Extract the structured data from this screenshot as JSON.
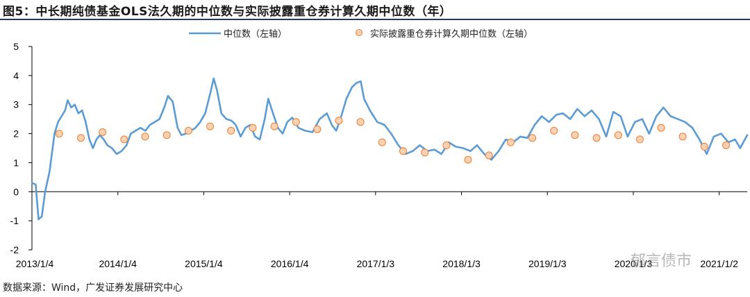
{
  "title": "图5：中长期纯债基金OLS法久期的中位数与实际披露重仓券计算久期中位数（年）",
  "source": "数据来源：Wind，广发证券发展研究中心",
  "watermark": "郁言债市",
  "colors": {
    "line": "#5b9bd5",
    "marker_fill": "#fbd3b4",
    "marker_edge": "#ed7d31",
    "axis": "#000000",
    "title_rule": "#1f3864"
  },
  "chart_data": {
    "type": "line",
    "title": "",
    "xlabel": "",
    "ylabel": "",
    "ylim": [
      -2,
      5
    ],
    "yticks": [
      -2,
      -1,
      0,
      1,
      2,
      3,
      4,
      5
    ],
    "x_range": [
      "2013-01-04",
      "2021-05-01"
    ],
    "xticks": [
      {
        "date": "2013-01-04",
        "label": "2013/1/4"
      },
      {
        "date": "2014-01-04",
        "label": "2014/1/4"
      },
      {
        "date": "2015-01-04",
        "label": "2015/1/4"
      },
      {
        "date": "2016-01-04",
        "label": "2016/1/4"
      },
      {
        "date": "2017-01-03",
        "label": "2017/1/3"
      },
      {
        "date": "2018-01-03",
        "label": "2018/1/3"
      },
      {
        "date": "2019-01-03",
        "label": "2019/1/3"
      },
      {
        "date": "2020-01-03",
        "label": "2020/1/3"
      },
      {
        "date": "2021-01-02",
        "label": "2021/1/2"
      }
    ],
    "legend_position": "top",
    "series": [
      {
        "name": "中位数（左轴）",
        "kind": "line",
        "points": [
          [
            "2013-01-04",
            0.3
          ],
          [
            "2013-01-20",
            0.25
          ],
          [
            "2013-02-01",
            -0.95
          ],
          [
            "2013-02-15",
            -0.85
          ],
          [
            "2013-03-01",
            0.0
          ],
          [
            "2013-03-20",
            0.7
          ],
          [
            "2013-04-10",
            2.0
          ],
          [
            "2013-04-25",
            2.4
          ],
          [
            "2013-05-10",
            2.6
          ],
          [
            "2013-05-25",
            2.8
          ],
          [
            "2013-06-05",
            3.15
          ],
          [
            "2013-06-20",
            2.9
          ],
          [
            "2013-07-05",
            3.0
          ],
          [
            "2013-07-20",
            2.7
          ],
          [
            "2013-08-05",
            2.8
          ],
          [
            "2013-08-20",
            2.4
          ],
          [
            "2013-09-05",
            1.8
          ],
          [
            "2013-09-20",
            1.5
          ],
          [
            "2013-10-05",
            1.8
          ],
          [
            "2013-10-20",
            1.95
          ],
          [
            "2013-11-05",
            1.8
          ],
          [
            "2013-11-20",
            1.6
          ],
          [
            "2013-12-10",
            1.5
          ],
          [
            "2013-12-30",
            1.3
          ],
          [
            "2014-01-20",
            1.4
          ],
          [
            "2014-02-10",
            1.6
          ],
          [
            "2014-02-28",
            2.0
          ],
          [
            "2014-03-20",
            2.1
          ],
          [
            "2014-04-10",
            2.2
          ],
          [
            "2014-05-01",
            2.1
          ],
          [
            "2014-05-20",
            2.3
          ],
          [
            "2014-06-10",
            2.4
          ],
          [
            "2014-06-30",
            2.5
          ],
          [
            "2014-07-20",
            2.9
          ],
          [
            "2014-08-05",
            3.3
          ],
          [
            "2014-08-25",
            3.1
          ],
          [
            "2014-09-15",
            2.2
          ],
          [
            "2014-10-01",
            1.95
          ],
          [
            "2014-10-20",
            2.0
          ],
          [
            "2014-11-10",
            2.1
          ],
          [
            "2014-11-30",
            2.2
          ],
          [
            "2014-12-20",
            2.4
          ],
          [
            "2015-01-10",
            2.7
          ],
          [
            "2015-02-01",
            3.4
          ],
          [
            "2015-02-15",
            3.9
          ],
          [
            "2015-03-01",
            3.5
          ],
          [
            "2015-03-20",
            2.7
          ],
          [
            "2015-04-10",
            2.5
          ],
          [
            "2015-05-01",
            2.45
          ],
          [
            "2015-05-20",
            2.3
          ],
          [
            "2015-06-10",
            1.9
          ],
          [
            "2015-06-30",
            2.2
          ],
          [
            "2015-07-20",
            2.3
          ],
          [
            "2015-08-10",
            1.9
          ],
          [
            "2015-08-30",
            1.8
          ],
          [
            "2015-09-20",
            2.5
          ],
          [
            "2015-10-05",
            3.2
          ],
          [
            "2015-10-25",
            2.7
          ],
          [
            "2015-11-15",
            2.2
          ],
          [
            "2015-12-05",
            2.0
          ],
          [
            "2015-12-25",
            2.4
          ],
          [
            "2016-01-15",
            2.55
          ],
          [
            "2016-02-10",
            2.2
          ],
          [
            "2016-03-10",
            2.1
          ],
          [
            "2016-04-10",
            2.05
          ],
          [
            "2016-05-10",
            2.5
          ],
          [
            "2016-06-10",
            2.7
          ],
          [
            "2016-07-01",
            2.3
          ],
          [
            "2016-07-20",
            2.1
          ],
          [
            "2016-08-10",
            2.6
          ],
          [
            "2016-09-01",
            3.2
          ],
          [
            "2016-09-25",
            3.6
          ],
          [
            "2016-10-15",
            3.75
          ],
          [
            "2016-11-01",
            3.8
          ],
          [
            "2016-11-15",
            3.2
          ],
          [
            "2016-12-10",
            2.8
          ],
          [
            "2017-01-10",
            2.4
          ],
          [
            "2017-02-10",
            2.3
          ],
          [
            "2017-03-10",
            2.0
          ],
          [
            "2017-04-10",
            1.6
          ],
          [
            "2017-05-10",
            1.3
          ],
          [
            "2017-06-10",
            1.4
          ],
          [
            "2017-07-10",
            1.6
          ],
          [
            "2017-08-10",
            1.4
          ],
          [
            "2017-09-10",
            1.45
          ],
          [
            "2017-10-10",
            1.3
          ],
          [
            "2017-11-10",
            1.7
          ],
          [
            "2017-12-10",
            1.55
          ],
          [
            "2018-01-10",
            1.5
          ],
          [
            "2018-02-10",
            1.4
          ],
          [
            "2018-03-10",
            1.6
          ],
          [
            "2018-04-10",
            1.3
          ],
          [
            "2018-05-10",
            1.1
          ],
          [
            "2018-06-10",
            1.4
          ],
          [
            "2018-07-10",
            1.8
          ],
          [
            "2018-08-10",
            1.7
          ],
          [
            "2018-09-10",
            1.9
          ],
          [
            "2018-10-10",
            1.85
          ],
          [
            "2018-11-10",
            2.3
          ],
          [
            "2018-12-10",
            2.6
          ],
          [
            "2019-01-10",
            2.4
          ],
          [
            "2019-02-10",
            2.65
          ],
          [
            "2019-03-10",
            2.7
          ],
          [
            "2019-04-10",
            2.5
          ],
          [
            "2019-05-10",
            2.85
          ],
          [
            "2019-06-10",
            2.6
          ],
          [
            "2019-07-10",
            2.8
          ],
          [
            "2019-08-10",
            2.5
          ],
          [
            "2019-09-10",
            1.9
          ],
          [
            "2019-10-10",
            2.75
          ],
          [
            "2019-11-10",
            2.6
          ],
          [
            "2019-12-10",
            1.9
          ],
          [
            "2020-01-10",
            2.4
          ],
          [
            "2020-02-10",
            2.5
          ],
          [
            "2020-03-10",
            2.0
          ],
          [
            "2020-04-10",
            2.6
          ],
          [
            "2020-05-10",
            2.9
          ],
          [
            "2020-06-10",
            2.6
          ],
          [
            "2020-07-10",
            2.5
          ],
          [
            "2020-08-10",
            2.4
          ],
          [
            "2020-09-10",
            2.2
          ],
          [
            "2020-10-10",
            1.8
          ],
          [
            "2020-11-10",
            1.3
          ],
          [
            "2020-12-10",
            1.9
          ],
          [
            "2021-01-10",
            2.0
          ],
          [
            "2021-02-10",
            1.7
          ],
          [
            "2021-03-10",
            1.8
          ],
          [
            "2021-04-01",
            1.5
          ],
          [
            "2021-05-01",
            1.95
          ]
        ]
      },
      {
        "name": "实际披露重仓券计算久期中位数（左轴）",
        "kind": "scatter",
        "points": [
          [
            "2013-04-30",
            2.0
          ],
          [
            "2013-07-31",
            1.85
          ],
          [
            "2013-10-31",
            2.05
          ],
          [
            "2014-01-31",
            1.8
          ],
          [
            "2014-04-30",
            1.9
          ],
          [
            "2014-07-31",
            1.95
          ],
          [
            "2014-10-31",
            2.1
          ],
          [
            "2015-01-31",
            2.25
          ],
          [
            "2015-04-30",
            2.1
          ],
          [
            "2015-07-31",
            2.2
          ],
          [
            "2015-10-31",
            2.25
          ],
          [
            "2016-01-31",
            2.4
          ],
          [
            "2016-04-30",
            2.15
          ],
          [
            "2016-07-31",
            2.45
          ],
          [
            "2016-10-31",
            2.4
          ],
          [
            "2017-01-31",
            1.7
          ],
          [
            "2017-04-30",
            1.4
          ],
          [
            "2017-07-31",
            1.35
          ],
          [
            "2017-10-31",
            1.6
          ],
          [
            "2018-01-31",
            1.1
          ],
          [
            "2018-04-30",
            1.25
          ],
          [
            "2018-07-31",
            1.7
          ],
          [
            "2018-10-31",
            1.85
          ],
          [
            "2019-01-31",
            2.1
          ],
          [
            "2019-04-30",
            1.95
          ],
          [
            "2019-07-31",
            1.85
          ],
          [
            "2019-10-31",
            1.95
          ],
          [
            "2020-01-31",
            1.8
          ],
          [
            "2020-04-30",
            2.2
          ],
          [
            "2020-07-31",
            1.9
          ],
          [
            "2020-10-31",
            1.55
          ],
          [
            "2021-01-31",
            1.6
          ]
        ]
      }
    ]
  }
}
